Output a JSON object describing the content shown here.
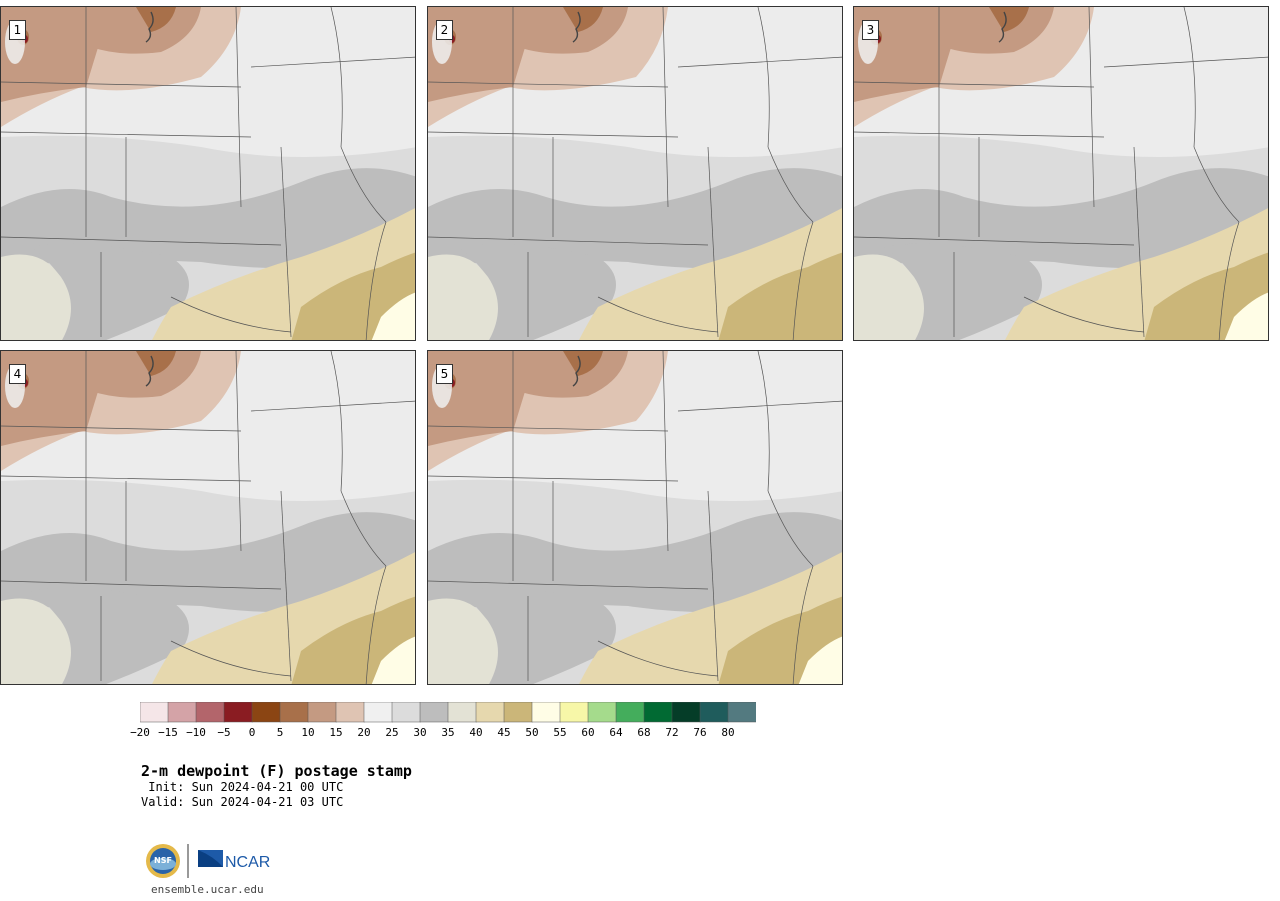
{
  "panels": [
    {
      "label": "1"
    },
    {
      "label": "2"
    },
    {
      "label": "3"
    },
    {
      "label": "4"
    },
    {
      "label": "5"
    }
  ],
  "legend": {
    "levels": [
      "-20",
      "-15",
      "-10",
      "-5",
      "0",
      "5",
      "10",
      "15",
      "20",
      "25",
      "30",
      "35",
      "40",
      "45",
      "50",
      "55",
      "60",
      "64",
      "68",
      "72",
      "76",
      "80"
    ],
    "colors": [
      "#f5e6e8",
      "#d4a3a7",
      "#b3656b",
      "#8a1c22",
      "#8b4513",
      "#a8704a",
      "#c49a82",
      "#dfc4b3",
      "#f0f0f0",
      "#dcdcdc",
      "#bdbdbd",
      "#e3e2d5",
      "#e6d8ae",
      "#cbb679",
      "#fffde6",
      "#f7f7a8",
      "#a5db8c",
      "#44ad5c",
      "#016a33",
      "#053d28",
      "#1f5c5c",
      "#537a80"
    ]
  },
  "title": "2-m dewpoint (F) postage stamp",
  "init": " Init: Sun 2024-04-21 00 UTC",
  "valid": "Valid: Sun 2024-04-21 03 UTC",
  "logos": {
    "left": "NSF",
    "right": "NCAR"
  },
  "url": "ensemble.ucar.edu"
}
